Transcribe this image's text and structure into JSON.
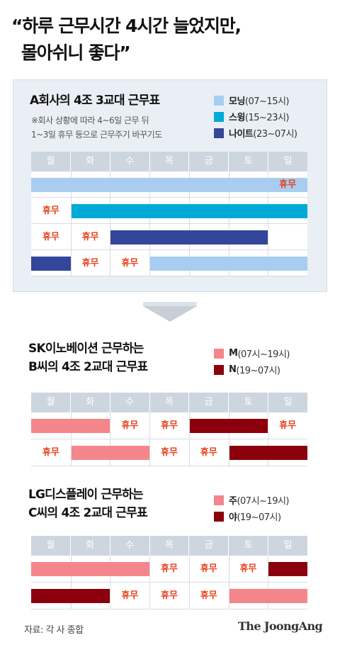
{
  "title": {
    "line1": "“하루 근무시간 4시간 늘었지만,",
    "line2": "몰아쉬니 좋다”"
  },
  "days": [
    "월",
    "화",
    "수",
    "목",
    "금",
    "토",
    "일"
  ],
  "rest_label": "휴무",
  "section_a": {
    "title": "A회사의 4조 3교대 근무표",
    "note1": "※회사 상황에 따라 4~6일 근무 뒤",
    "note2": "1~3일 휴무 등으로 근무주기 바꾸기도",
    "legend": [
      {
        "name": "모닝",
        "range": "(07~15시)",
        "color": "#a8cdf0"
      },
      {
        "name": "스윙",
        "range": "(15~23시)",
        "color": "#00aad6"
      },
      {
        "name": "나이트",
        "range": "(23~07시)",
        "color": "#33469a"
      }
    ],
    "rows": [
      [
        [
          "bar",
          0,
          6,
          "#a8cdf0"
        ],
        [
          "rest",
          6
        ]
      ],
      [
        [
          "rest",
          0
        ],
        [
          "bar",
          1,
          6,
          "#00aad6"
        ]
      ],
      [
        [
          "rest",
          0
        ],
        [
          "rest",
          1
        ],
        [
          "bar",
          2,
          5,
          "#33469a"
        ]
      ],
      [
        [
          "bar",
          0,
          0,
          "#33469a"
        ],
        [
          "rest",
          1
        ],
        [
          "rest",
          2
        ],
        [
          "bar",
          3,
          6,
          "#a8cdf0"
        ]
      ]
    ]
  },
  "section_b": {
    "title_line1": "SK이노베이션 근무하는",
    "title_line2": "B씨의 4조 2교대 근무표",
    "legend": [
      {
        "name": "M",
        "range": "(07시~19시)",
        "color": "#f4868b"
      },
      {
        "name": "N",
        "range": "(19~07시)",
        "color": "#8b000c"
      }
    ],
    "rows": [
      [
        [
          "bar",
          0,
          1,
          "#f4868b"
        ],
        [
          "rest",
          2
        ],
        [
          "rest",
          3
        ],
        [
          "bar",
          4,
          5,
          "#8b000c"
        ],
        [
          "rest",
          6
        ]
      ],
      [
        [
          "rest",
          0
        ],
        [
          "bar",
          1,
          2,
          "#f4868b"
        ],
        [
          "rest",
          3
        ],
        [
          "rest",
          4
        ],
        [
          "bar",
          5,
          6,
          "#8b000c"
        ]
      ]
    ]
  },
  "section_c": {
    "title_line1": "LG디스플레이 근무하는",
    "title_line2": "C씨의 4조 2교대 근무표",
    "legend": [
      {
        "name": "주",
        "range": "(07시~19시)",
        "color": "#f4868b"
      },
      {
        "name": "야",
        "range": "(19~07시)",
        "color": "#8b000c"
      }
    ],
    "rows": [
      [
        [
          "bar",
          0,
          2,
          "#f4868b"
        ],
        [
          "rest",
          3
        ],
        [
          "rest",
          4
        ],
        [
          "rest",
          5
        ],
        [
          "bar",
          6,
          6,
          "#8b000c"
        ]
      ],
      [
        [
          "bar",
          0,
          1,
          "#8b000c"
        ],
        [
          "rest",
          2
        ],
        [
          "rest",
          3
        ],
        [
          "rest",
          4
        ],
        [
          "bar",
          5,
          6,
          "#f4868b"
        ]
      ]
    ]
  },
  "source": "자료: 각 사 종합",
  "logo": "The JoongAng"
}
